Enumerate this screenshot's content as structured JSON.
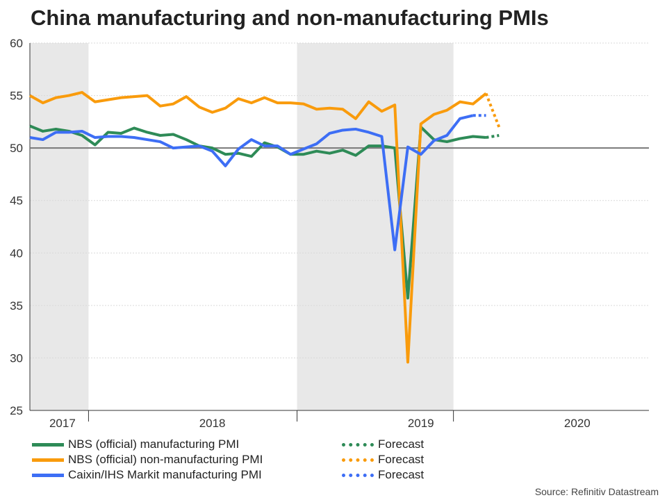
{
  "title": "China manufacturing and non-manufacturing PMIs",
  "source": "Source: Refinitiv Datastream",
  "colors": {
    "green": "#2e8b57",
    "orange": "#f99b0c",
    "blue": "#3d6ef5",
    "shade": "#e8e8e8",
    "refline": "#777777",
    "grid": "#d9d9d9"
  },
  "chart_data": {
    "type": "line",
    "title": "China manufacturing and non-manufacturing PMIs",
    "xlabel": "",
    "ylabel": "",
    "ylim": [
      25,
      60
    ],
    "yticks": [
      25,
      30,
      35,
      40,
      45,
      50,
      55,
      60
    ],
    "xrange_months": [
      0,
      47.5
    ],
    "reference_line": 50,
    "shaded_years": [
      2017,
      2019
    ],
    "year_labels": [
      {
        "label": "2017",
        "month": 2.5
      },
      {
        "label": "2018",
        "month": 14
      },
      {
        "label": "2019",
        "month": 30
      },
      {
        "label": "2020",
        "month": 42
      }
    ],
    "series": [
      {
        "name": "NBS (official) manufacturing PMI",
        "color": "#2e8b57",
        "values": [
          52.1,
          51.6,
          51.8,
          51.6,
          51.2,
          50.3,
          51.5,
          51.4,
          51.9,
          51.5,
          51.2,
          51.3,
          50.8,
          50.2,
          50.0,
          49.4,
          49.5,
          49.2,
          50.5,
          50.1,
          49.4,
          49.4,
          49.7,
          49.5,
          49.8,
          49.3,
          50.2,
          50.2,
          50.0,
          35.7,
          52.0,
          50.8,
          50.6,
          50.9,
          51.1,
          51.0
        ],
        "forecast": [
          51.0,
          51.2
        ]
      },
      {
        "name": "NBS (official) non-manufacturing PMI",
        "color": "#f99b0c",
        "values": [
          55.0,
          54.3,
          54.8,
          55.0,
          55.3,
          54.4,
          54.6,
          54.8,
          54.9,
          55.0,
          54.0,
          54.2,
          54.9,
          53.9,
          53.4,
          53.8,
          54.7,
          54.3,
          54.8,
          54.3,
          54.3,
          54.2,
          53.7,
          53.8,
          53.7,
          52.8,
          54.4,
          53.5,
          54.1,
          29.6,
          52.3,
          53.2,
          53.6,
          54.4,
          54.2,
          55.2
        ],
        "forecast": [
          55.2,
          52.0
        ]
      },
      {
        "name": "Caixin/IHS Markit manufacturing PMI",
        "color": "#3d6ef5",
        "values": [
          51.0,
          50.8,
          51.5,
          51.5,
          51.6,
          51.0,
          51.1,
          51.1,
          51.0,
          50.8,
          50.6,
          50.0,
          50.1,
          50.2,
          49.7,
          48.3,
          49.9,
          50.8,
          50.2,
          50.2,
          49.4,
          49.9,
          50.4,
          51.4,
          51.7,
          51.8,
          51.5,
          51.1,
          40.3,
          50.1,
          49.4,
          50.7,
          51.2,
          52.8,
          53.1
        ],
        "forecast": [
          53.1,
          53.1
        ]
      }
    ]
  },
  "legend": [
    {
      "label": "NBS (official) manufacturing PMI",
      "color": "#2e8b57",
      "style": "solid"
    },
    {
      "label": "NBS (official) non-manufacturing PMI",
      "color": "#f99b0c",
      "style": "solid"
    },
    {
      "label": "Caixin/IHS Markit manufacturing PMI",
      "color": "#3d6ef5",
      "style": "solid"
    },
    {
      "label": "Forecast",
      "color": "#2e8b57",
      "style": "dotted"
    },
    {
      "label": "Forecast",
      "color": "#f99b0c",
      "style": "dotted"
    },
    {
      "label": "Forecast",
      "color": "#3d6ef5",
      "style": "dotted"
    }
  ]
}
